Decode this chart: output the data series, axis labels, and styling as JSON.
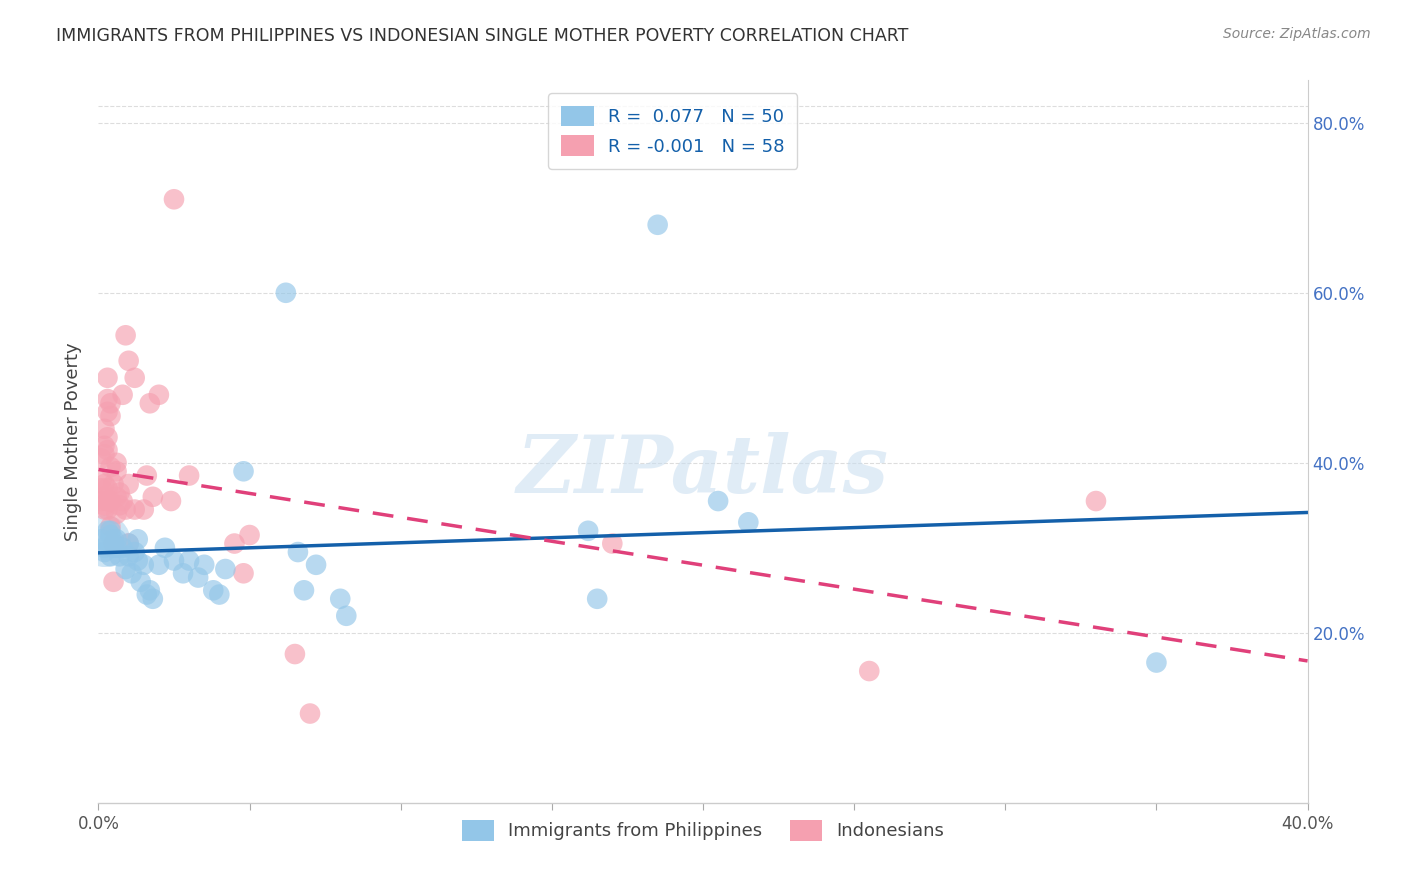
{
  "title": "IMMIGRANTS FROM PHILIPPINES VS INDONESIAN SINGLE MOTHER POVERTY CORRELATION CHART",
  "source": "Source: ZipAtlas.com",
  "ylabel": "Single Mother Poverty",
  "xlim": [
    0.0,
    0.4
  ],
  "ylim": [
    0.0,
    0.85
  ],
  "legend_r_philippines": "0.077",
  "legend_n_philippines": "50",
  "legend_r_indonesian": "-0.001",
  "legend_n_indonesian": "58",
  "blue_color": "#93c6e8",
  "pink_color": "#f5a0b0",
  "line_blue": "#1460aa",
  "line_pink": "#e0407a",
  "watermark": "ZIPatlas",
  "philippines_points": [
    [
      0.001,
      0.31
    ],
    [
      0.002,
      0.3
    ],
    [
      0.002,
      0.295
    ],
    [
      0.003,
      0.32
    ],
    [
      0.003,
      0.305
    ],
    [
      0.004,
      0.32
    ],
    [
      0.004,
      0.315
    ],
    [
      0.004,
      0.29
    ],
    [
      0.005,
      0.305
    ],
    [
      0.005,
      0.31
    ],
    [
      0.005,
      0.3
    ],
    [
      0.006,
      0.31
    ],
    [
      0.006,
      0.3
    ],
    [
      0.007,
      0.29
    ],
    [
      0.008,
      0.3
    ],
    [
      0.009,
      0.275
    ],
    [
      0.01,
      0.305
    ],
    [
      0.01,
      0.29
    ],
    [
      0.011,
      0.27
    ],
    [
      0.012,
      0.295
    ],
    [
      0.013,
      0.31
    ],
    [
      0.013,
      0.285
    ],
    [
      0.014,
      0.26
    ],
    [
      0.015,
      0.28
    ],
    [
      0.016,
      0.245
    ],
    [
      0.017,
      0.25
    ],
    [
      0.018,
      0.24
    ],
    [
      0.02,
      0.28
    ],
    [
      0.022,
      0.3
    ],
    [
      0.025,
      0.285
    ],
    [
      0.028,
      0.27
    ],
    [
      0.03,
      0.285
    ],
    [
      0.033,
      0.265
    ],
    [
      0.035,
      0.28
    ],
    [
      0.038,
      0.25
    ],
    [
      0.04,
      0.245
    ],
    [
      0.042,
      0.275
    ],
    [
      0.048,
      0.39
    ],
    [
      0.062,
      0.6
    ],
    [
      0.066,
      0.295
    ],
    [
      0.068,
      0.25
    ],
    [
      0.072,
      0.28
    ],
    [
      0.08,
      0.24
    ],
    [
      0.082,
      0.22
    ],
    [
      0.162,
      0.32
    ],
    [
      0.165,
      0.24
    ],
    [
      0.185,
      0.68
    ],
    [
      0.205,
      0.355
    ],
    [
      0.215,
      0.33
    ],
    [
      0.35,
      0.165
    ]
  ],
  "indonesian_points": [
    [
      0.001,
      0.355
    ],
    [
      0.001,
      0.37
    ],
    [
      0.001,
      0.38
    ],
    [
      0.001,
      0.405
    ],
    [
      0.002,
      0.345
    ],
    [
      0.002,
      0.35
    ],
    [
      0.002,
      0.36
    ],
    [
      0.002,
      0.375
    ],
    [
      0.002,
      0.41
    ],
    [
      0.002,
      0.42
    ],
    [
      0.002,
      0.44
    ],
    [
      0.003,
      0.345
    ],
    [
      0.003,
      0.355
    ],
    [
      0.003,
      0.37
    ],
    [
      0.003,
      0.415
    ],
    [
      0.003,
      0.43
    ],
    [
      0.003,
      0.46
    ],
    [
      0.003,
      0.475
    ],
    [
      0.003,
      0.5
    ],
    [
      0.004,
      0.325
    ],
    [
      0.004,
      0.355
    ],
    [
      0.004,
      0.395
    ],
    [
      0.004,
      0.455
    ],
    [
      0.004,
      0.47
    ],
    [
      0.005,
      0.26
    ],
    [
      0.005,
      0.305
    ],
    [
      0.005,
      0.375
    ],
    [
      0.006,
      0.34
    ],
    [
      0.006,
      0.36
    ],
    [
      0.006,
      0.39
    ],
    [
      0.006,
      0.4
    ],
    [
      0.007,
      0.35
    ],
    [
      0.007,
      0.365
    ],
    [
      0.008,
      0.355
    ],
    [
      0.008,
      0.48
    ],
    [
      0.009,
      0.345
    ],
    [
      0.009,
      0.55
    ],
    [
      0.01,
      0.305
    ],
    [
      0.01,
      0.375
    ],
    [
      0.01,
      0.52
    ],
    [
      0.012,
      0.345
    ],
    [
      0.012,
      0.5
    ],
    [
      0.015,
      0.345
    ],
    [
      0.016,
      0.385
    ],
    [
      0.017,
      0.47
    ],
    [
      0.018,
      0.36
    ],
    [
      0.02,
      0.48
    ],
    [
      0.024,
      0.355
    ],
    [
      0.025,
      0.71
    ],
    [
      0.03,
      0.385
    ],
    [
      0.045,
      0.305
    ],
    [
      0.048,
      0.27
    ],
    [
      0.05,
      0.315
    ],
    [
      0.065,
      0.175
    ],
    [
      0.07,
      0.105
    ],
    [
      0.17,
      0.305
    ],
    [
      0.255,
      0.155
    ],
    [
      0.33,
      0.355
    ]
  ]
}
